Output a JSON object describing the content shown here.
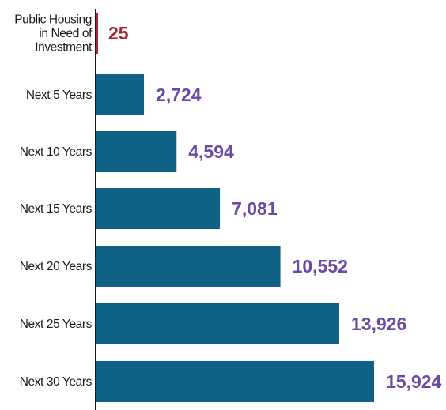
{
  "chart_data": {
    "type": "bar",
    "orientation": "horizontal",
    "categories": [
      [
        "Public Housing",
        "in Need of",
        "Investment"
      ],
      [
        "Next 5 Years"
      ],
      [
        "Next 10 Years"
      ],
      [
        "Next 15 Years"
      ],
      [
        "Next 20 Years"
      ],
      [
        "Next 25 Years"
      ],
      [
        "Next 30 Years"
      ]
    ],
    "values": [
      25,
      2724,
      4594,
      7081,
      10552,
      13926,
      15924
    ],
    "value_labels": [
      "25",
      "2,724",
      "4,594",
      "7,081",
      "10,552",
      "13,926",
      "15,924"
    ],
    "colors": {
      "bars": [
        "#a52a2f",
        "#0f6286",
        "#0f6286",
        "#0f6286",
        "#0f6286",
        "#0f6286",
        "#0f6286"
      ],
      "value_labels": [
        "#a52a2f",
        "#6a48a3",
        "#6a48a3",
        "#6a48a3",
        "#6a48a3",
        "#6a48a3",
        "#6a48a3"
      ],
      "axis": "#1a1a1a"
    },
    "title": "",
    "xlabel": "",
    "ylabel": "",
    "xlim": [
      0,
      15924
    ],
    "grid": false,
    "legend": "none"
  }
}
